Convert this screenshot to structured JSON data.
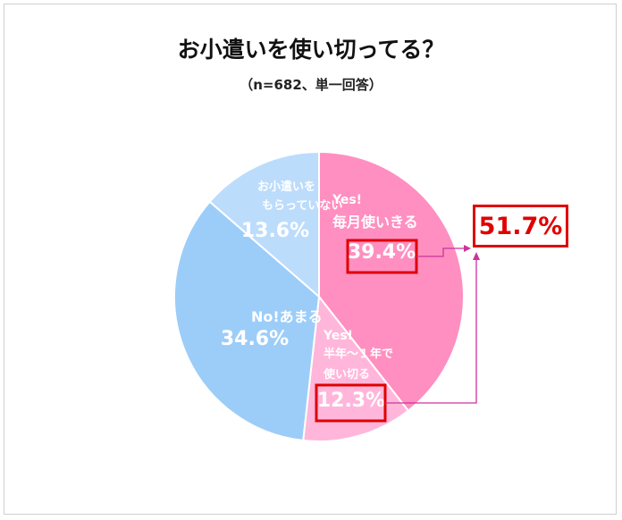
{
  "title": "お小遣いを使い切ってる？",
  "subtitle": "（n=682、単一回答）",
  "callout_total": "51.7%",
  "chart_data": {
    "type": "pie",
    "title": "お小遣いを使い切ってる？",
    "subtitle": "（n=682、単一回答）",
    "slices": [
      {
        "label_lines": [
          "Yes!",
          "毎月使いきる"
        ],
        "value": 39.4,
        "value_label": "39.4%",
        "color": "#ff8fc0"
      },
      {
        "label_lines": [
          "Yes!",
          "半年～１年で",
          "使い切る"
        ],
        "value": 12.3,
        "value_label": "12.3%",
        "color": "#ffb6da"
      },
      {
        "label_lines": [
          "No!あまる"
        ],
        "value": 34.6,
        "value_label": "34.6%",
        "color": "#9ccdf8"
      },
      {
        "label_lines": [
          "お小遣いを",
          "もらっていない"
        ],
        "value": 13.6,
        "value_label": "13.6%",
        "color": "#bcdcfc"
      }
    ],
    "callout": {
      "value_label": "51.7%",
      "sum_of": [
        "39.4%",
        "12.3%"
      ],
      "color": "#e00000"
    },
    "connector_color": "#cc3399"
  }
}
